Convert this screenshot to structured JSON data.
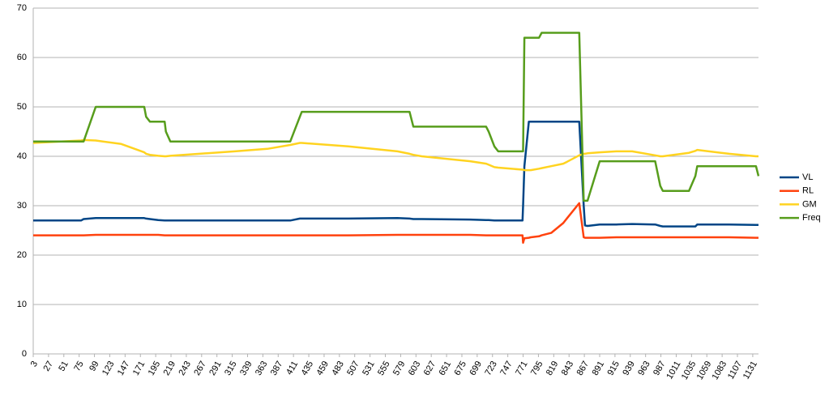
{
  "chart_data": {
    "type": "line",
    "x": [
      3,
      78,
      82,
      101,
      141,
      177,
      180,
      186,
      199,
      209,
      211,
      218,
      319,
      370,
      406,
      421,
      424,
      497,
      574,
      593,
      599,
      612,
      688,
      713,
      717,
      726,
      732,
      770,
      771,
      773,
      780,
      783,
      796,
      800,
      815,
      834,
      840,
      859,
      866,
      868,
      872,
      891,
      917,
      942,
      978,
      986,
      990,
      1031,
      1041,
      1044,
      1094,
      1136,
      1140
    ],
    "series": [
      {
        "name": "VL",
        "color": "#004586",
        "values": [
          27,
          27,
          27.3,
          27.5,
          27.5,
          27.5,
          27.4,
          27.3,
          27.1,
          27,
          27,
          27,
          27,
          27,
          27,
          27.4,
          27.4,
          27.4,
          27.5,
          27.4,
          27.3,
          27.3,
          27.2,
          27.1,
          27.1,
          27,
          27,
          27,
          30,
          38,
          47,
          47,
          47,
          47,
          47,
          47,
          47,
          47,
          30,
          26,
          25.9,
          26.2,
          26.2,
          26.3,
          26.2,
          25.9,
          25.8,
          25.8,
          25.8,
          26.2,
          26.2,
          26.1,
          26.1
        ]
      },
      {
        "name": "RL",
        "color": "#ff420e",
        "values": [
          24,
          24,
          24,
          24.1,
          24.1,
          24.1,
          24.1,
          24.1,
          24.1,
          24,
          24,
          24,
          24,
          24,
          24,
          24,
          24,
          24,
          24.1,
          24.1,
          24.1,
          24.1,
          24.1,
          24,
          24,
          24,
          24,
          24,
          22.5,
          23.4,
          23.5,
          23.6,
          23.8,
          24,
          24.5,
          26.5,
          27.5,
          30.5,
          23.6,
          23.5,
          23.5,
          23.5,
          23.6,
          23.6,
          23.6,
          23.6,
          23.6,
          23.6,
          23.6,
          23.6,
          23.6,
          23.5,
          23.5
        ]
      },
      {
        "name": "GM",
        "color": "#ffd320",
        "values": [
          42.7,
          43.2,
          43.3,
          43.2,
          42.5,
          40.8,
          40.5,
          40.3,
          40.1,
          40,
          40,
          40.1,
          41,
          41.5,
          42.3,
          42.7,
          42.7,
          42,
          41,
          40.5,
          40.3,
          40,
          39,
          38.5,
          38.3,
          37.8,
          37.7,
          37.3,
          37.3,
          37.2,
          37.2,
          37.2,
          37.5,
          37.6,
          38,
          38.5,
          38.9,
          40.2,
          40.5,
          40.5,
          40.6,
          40.8,
          41,
          41,
          40.2,
          40,
          40,
          40.7,
          41.1,
          41.3,
          40.5,
          40,
          40
        ]
      },
      {
        "name": "Freq",
        "color": "#579d1c",
        "values": [
          43,
          43,
          43,
          50,
          50,
          50,
          48,
          47,
          47,
          47,
          45,
          43,
          43,
          43,
          43,
          48,
          49,
          49,
          49,
          49,
          46,
          46,
          46,
          46,
          45,
          42,
          41,
          41,
          41,
          64,
          64,
          64,
          64,
          65,
          65,
          65,
          65,
          65,
          31,
          31,
          31,
          39,
          39,
          39,
          39,
          34,
          33,
          33,
          36,
          38,
          38,
          38,
          36
        ]
      }
    ],
    "xlim": [
      3,
      1140
    ],
    "xticks": [
      3,
      27,
      51,
      75,
      99,
      123,
      147,
      171,
      195,
      219,
      243,
      267,
      291,
      315,
      339,
      363,
      387,
      411,
      435,
      459,
      483,
      507,
      531,
      555,
      579,
      603,
      627,
      651,
      675,
      699,
      723,
      747,
      771,
      795,
      819,
      843,
      867,
      891,
      915,
      939,
      963,
      987,
      1011,
      1035,
      1059,
      1083,
      1107,
      1131
    ],
    "ylim": [
      0,
      70
    ],
    "yticks": [
      0,
      10,
      20,
      30,
      40,
      50,
      60,
      70
    ],
    "grid": true,
    "legend": "right"
  }
}
